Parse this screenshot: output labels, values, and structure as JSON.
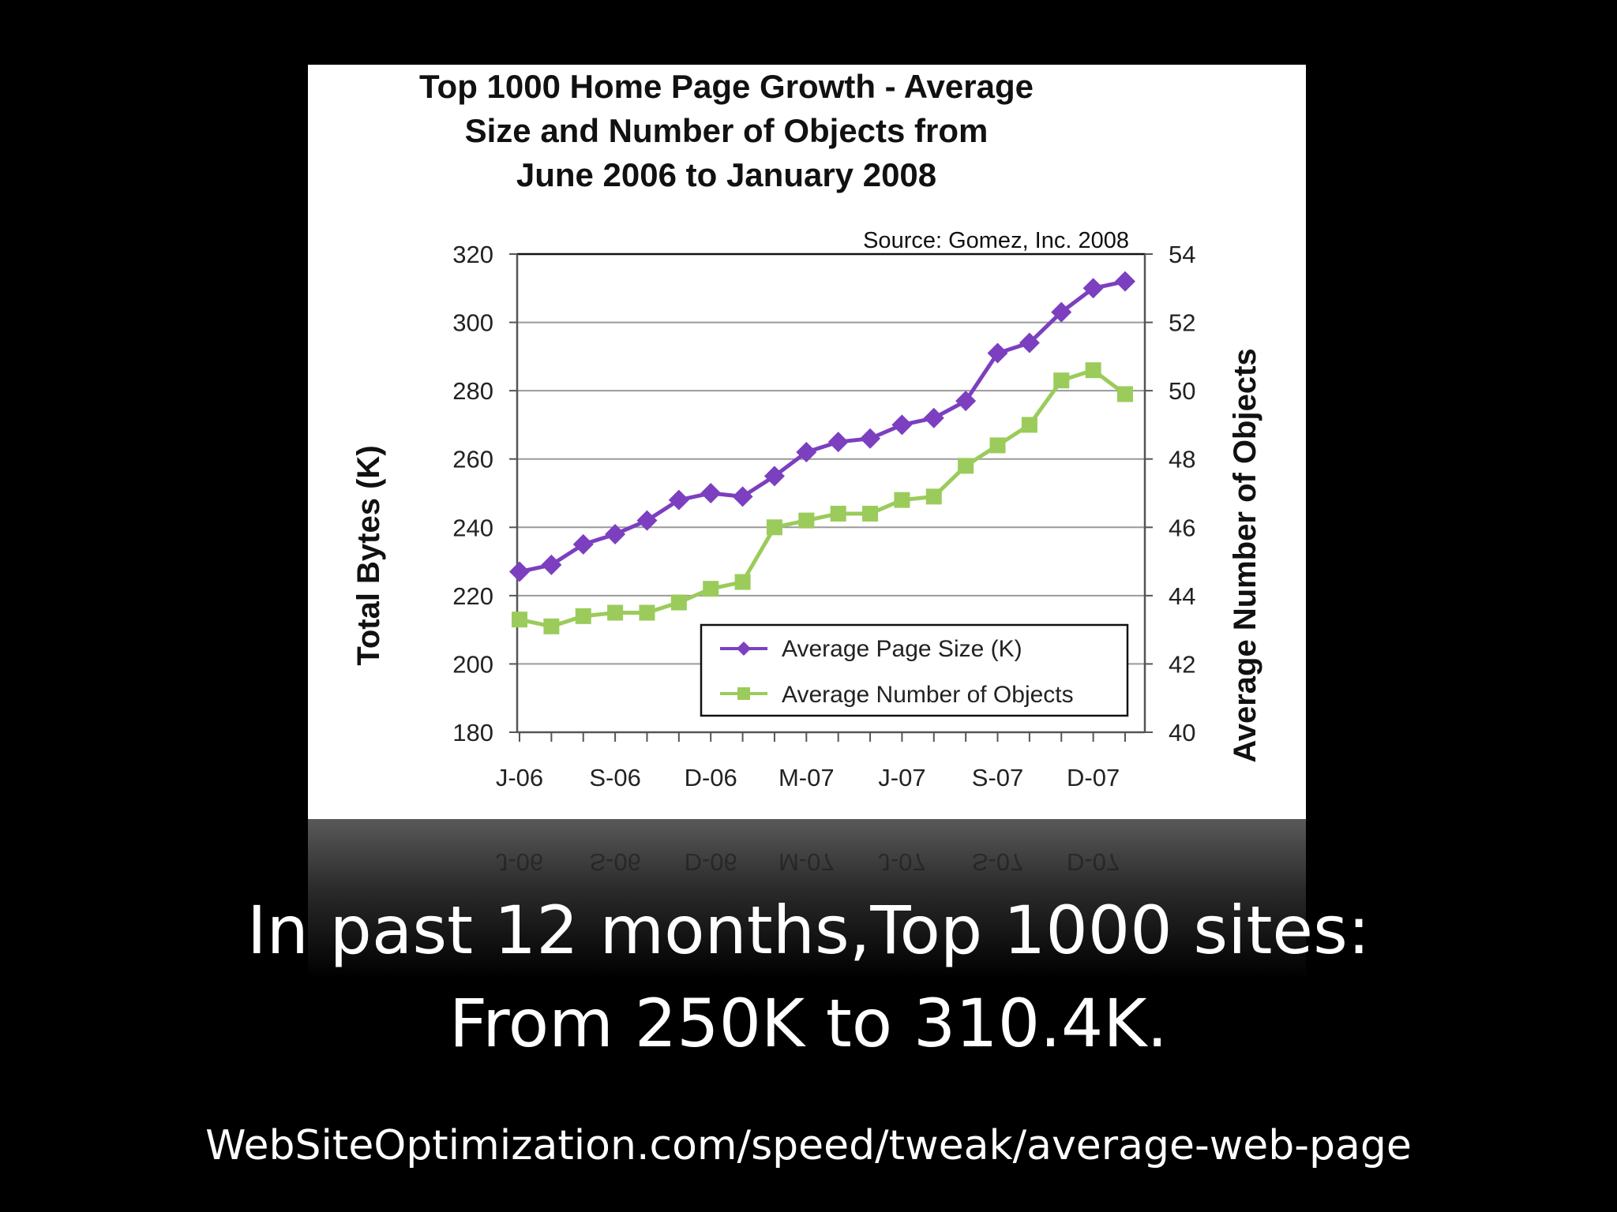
{
  "slide": {
    "headline_line1": "In past 12 months,Top 1000 sites:",
    "headline_line2": "From 250K to 310.4K.",
    "url": "WebSiteOptimization.com/speed/tweak/average-web-page"
  },
  "chart_data": {
    "type": "line",
    "title_lines": [
      "Top 1000 Home Page Growth - Average",
      "Size and Number of Objects from",
      "June 2006 to January 2008"
    ],
    "source": "Source: Gomez, Inc. 2008",
    "ylabel": "Total Bytes (K)",
    "y2label": "Average Number of Objects",
    "ylim": [
      180,
      320
    ],
    "y2lim": [
      40,
      54
    ],
    "yticks": [
      180,
      200,
      220,
      240,
      260,
      280,
      300,
      320
    ],
    "y2ticks": [
      40,
      42,
      44,
      46,
      48,
      50,
      52,
      54
    ],
    "x": [
      "Jun-06",
      "Jul-06",
      "Aug-06",
      "Sep-06",
      "Oct-06",
      "Nov-06",
      "Dec-06",
      "Jan-07",
      "Feb-07",
      "Mar-07",
      "Apr-07",
      "May-07",
      "Jun-07",
      "Jul-07",
      "Aug-07",
      "Sep-07",
      "Oct-07",
      "Nov-07",
      "Dec-07",
      "Jan-08"
    ],
    "xtick_labels": [
      "J-06",
      "S-06",
      "D-06",
      "M-07",
      "J-07",
      "S-07",
      "D-07"
    ],
    "xtick_label_index": [
      0,
      3,
      6,
      9,
      12,
      15,
      18
    ],
    "grid": true,
    "legend_position": "bottom-right",
    "series": [
      {
        "name": "Average Page Size (K)",
        "axis": "left",
        "marker": "diamond",
        "color": "#7B3FBF",
        "values": [
          227,
          229,
          235,
          238,
          242,
          248,
          250,
          249,
          255,
          262,
          265,
          266,
          270,
          272,
          277,
          291,
          294,
          303,
          310,
          312
        ]
      },
      {
        "name": "Average Number of Objects",
        "axis": "right",
        "marker": "square",
        "color": "#9BCB5B",
        "values": [
          43.3,
          43.1,
          43.4,
          43.5,
          43.5,
          43.8,
          44.2,
          44.4,
          46.0,
          46.2,
          46.4,
          46.4,
          46.8,
          46.9,
          47.8,
          48.4,
          49.0,
          50.3,
          50.6,
          49.9
        ]
      }
    ]
  }
}
